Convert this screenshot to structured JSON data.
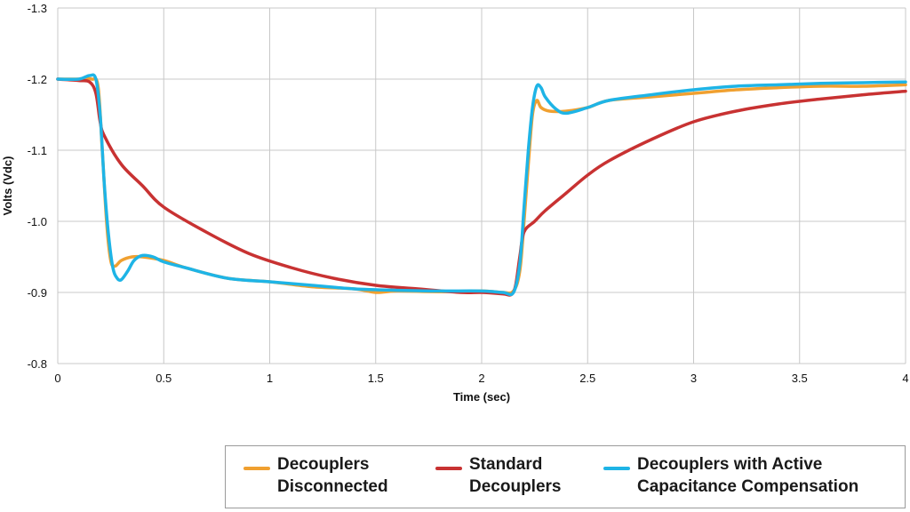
{
  "chart_data": {
    "type": "line",
    "title": "",
    "xlabel": "Time (sec)",
    "ylabel": "Volts (Vdc)",
    "xlim": [
      0,
      4
    ],
    "ylim": [
      -1.3,
      -0.8
    ],
    "y_reversed": true,
    "grid": true,
    "xticks": [
      0,
      0.5,
      1,
      1.5,
      2,
      2.5,
      3,
      3.5,
      4
    ],
    "xtick_labels": [
      "0",
      "0.5",
      "1",
      "1.5",
      "2",
      "2.5",
      "3",
      "3.5",
      "4"
    ],
    "yticks": [
      -1.3,
      -1.2,
      -1.1,
      -1.0,
      -0.9,
      -0.8
    ],
    "ytick_labels": [
      "-1.3",
      "-1.2",
      "-1.1",
      "-1.0",
      "-0.9",
      "-0.8"
    ],
    "legend_position": "bottom-right",
    "series": [
      {
        "name": "Decouplers Disconnected",
        "legend_lines": [
          "Decouplers",
          "Disconnected"
        ],
        "color": "#f0a030",
        "x": [
          0,
          0.1,
          0.16,
          0.19,
          0.21,
          0.23,
          0.25,
          0.27,
          0.3,
          0.35,
          0.4,
          0.5,
          0.6,
          0.8,
          1.0,
          1.2,
          1.4,
          1.5,
          1.6,
          1.8,
          2.0,
          2.1,
          2.15,
          2.18,
          2.2,
          2.22,
          2.24,
          2.26,
          2.28,
          2.32,
          2.4,
          2.5,
          2.6,
          2.8,
          3.0,
          3.2,
          3.4,
          3.6,
          3.8,
          4.0
        ],
        "y": [
          -1.2,
          -1.2,
          -1.2,
          -1.19,
          -1.1,
          -1.0,
          -0.945,
          -0.937,
          -0.945,
          -0.95,
          -0.95,
          -0.945,
          -0.935,
          -0.92,
          -0.915,
          -0.908,
          -0.905,
          -0.9,
          -0.902,
          -0.901,
          -0.902,
          -0.9,
          -0.902,
          -0.93,
          -1.0,
          -1.08,
          -1.15,
          -1.17,
          -1.16,
          -1.155,
          -1.155,
          -1.16,
          -1.17,
          -1.175,
          -1.18,
          -1.185,
          -1.188,
          -1.19,
          -1.19,
          -1.192
        ]
      },
      {
        "name": "Standard Decouplers",
        "legend_lines": [
          "Standard",
          "Decouplers"
        ],
        "color": "#c83232",
        "x": [
          0,
          0.1,
          0.15,
          0.18,
          0.2,
          0.22,
          0.3,
          0.4,
          0.5,
          0.7,
          0.9,
          1.1,
          1.3,
          1.5,
          1.7,
          1.9,
          2.0,
          2.1,
          2.14,
          2.16,
          2.18,
          2.2,
          2.25,
          2.3,
          2.4,
          2.5,
          2.6,
          2.8,
          3.0,
          3.2,
          3.4,
          3.6,
          3.8,
          4.0
        ],
        "y": [
          -1.2,
          -1.198,
          -1.196,
          -1.18,
          -1.14,
          -1.12,
          -1.08,
          -1.05,
          -1.02,
          -0.985,
          -0.955,
          -0.935,
          -0.92,
          -0.91,
          -0.905,
          -0.9,
          -0.9,
          -0.898,
          -0.897,
          -0.91,
          -0.95,
          -0.985,
          -1.0,
          -1.015,
          -1.04,
          -1.065,
          -1.085,
          -1.115,
          -1.14,
          -1.155,
          -1.165,
          -1.172,
          -1.178,
          -1.183
        ]
      },
      {
        "name": "Decouplers with Active Capacitance Compensation",
        "legend_lines": [
          "Decouplers with Active",
          "Capacitance Compensation"
        ],
        "color": "#1eb4e6",
        "x": [
          0,
          0.1,
          0.15,
          0.18,
          0.2,
          0.22,
          0.24,
          0.26,
          0.28,
          0.3,
          0.33,
          0.36,
          0.4,
          0.45,
          0.5,
          0.6,
          0.8,
          1.0,
          1.2,
          1.4,
          1.6,
          1.8,
          2.0,
          2.1,
          2.15,
          2.18,
          2.2,
          2.22,
          2.24,
          2.26,
          2.28,
          2.3,
          2.35,
          2.4,
          2.5,
          2.6,
          2.8,
          3.0,
          3.2,
          3.4,
          3.6,
          3.8,
          4.0
        ],
        "y": [
          -1.2,
          -1.2,
          -1.205,
          -1.2,
          -1.15,
          -1.05,
          -0.98,
          -0.935,
          -0.92,
          -0.918,
          -0.93,
          -0.945,
          -0.952,
          -0.95,
          -0.943,
          -0.935,
          -0.92,
          -0.915,
          -0.91,
          -0.905,
          -0.903,
          -0.902,
          -0.902,
          -0.9,
          -0.9,
          -0.94,
          -1.02,
          -1.1,
          -1.16,
          -1.19,
          -1.188,
          -1.175,
          -1.158,
          -1.152,
          -1.16,
          -1.17,
          -1.178,
          -1.185,
          -1.19,
          -1.192,
          -1.194,
          -1.195,
          -1.196
        ]
      }
    ]
  }
}
